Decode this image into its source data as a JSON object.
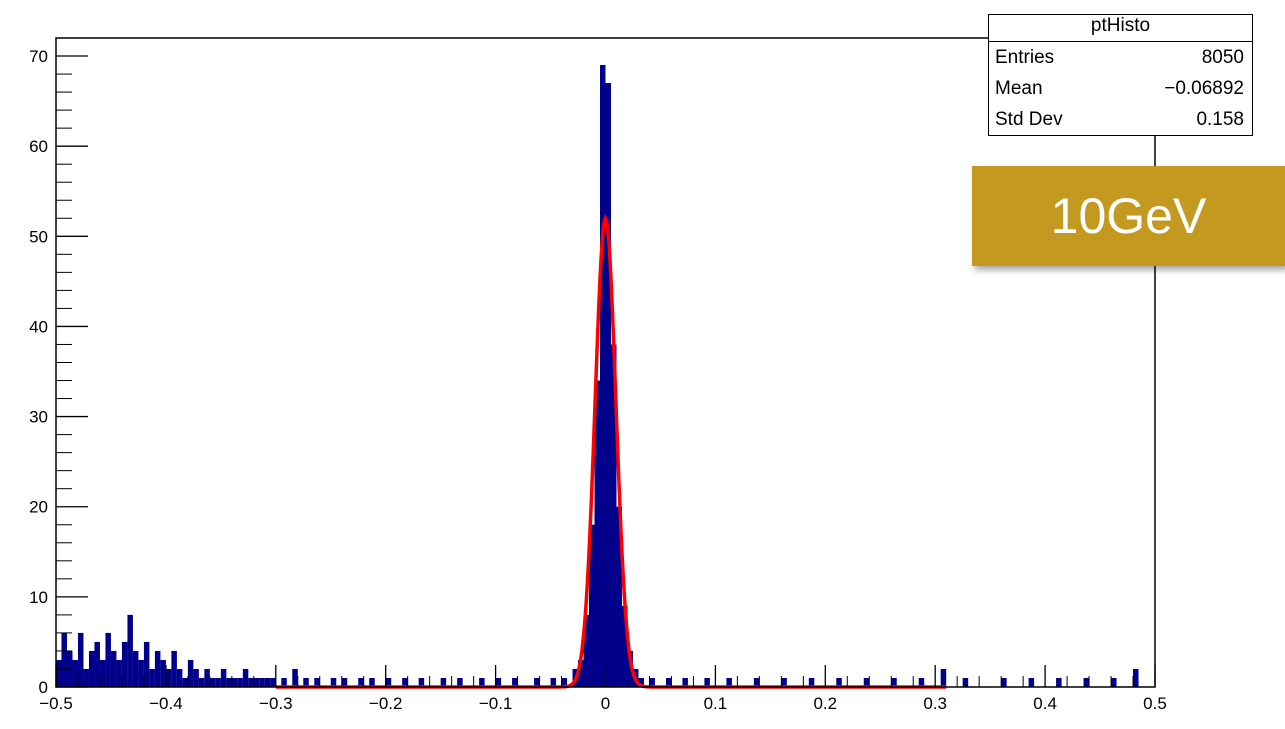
{
  "stats": {
    "title": "ptHisto",
    "rows": [
      {
        "label": "Entries",
        "value": "8050"
      },
      {
        "label": "Mean",
        "value": "−0.06892"
      },
      {
        "label": "Std Dev",
        "value": "0.158"
      }
    ]
  },
  "badge": {
    "text": "10GeV",
    "color": "#c4991f"
  },
  "chart_data": {
    "type": "bar",
    "title": "",
    "xlabel": "",
    "ylabel": "",
    "xlim": [
      -0.5,
      0.5
    ],
    "ylim": [
      0,
      72
    ],
    "x_ticks": [
      "−0.5",
      "−0.4",
      "−0.3",
      "−0.2",
      "−0.1",
      "0",
      "0.1",
      "0.2",
      "0.3",
      "0.4",
      "0.5"
    ],
    "y_ticks": [
      "0",
      "10",
      "20",
      "30",
      "40",
      "50",
      "60",
      "70"
    ],
    "histogram_color": "#00008b",
    "fit_color": "#ff0000",
    "bins": [
      {
        "x": -0.4975,
        "y": 3
      },
      {
        "x": -0.4925,
        "y": 6
      },
      {
        "x": -0.4875,
        "y": 4
      },
      {
        "x": -0.4825,
        "y": 3
      },
      {
        "x": -0.4775,
        "y": 6
      },
      {
        "x": -0.4725,
        "y": 2
      },
      {
        "x": -0.4675,
        "y": 4
      },
      {
        "x": -0.4625,
        "y": 5
      },
      {
        "x": -0.4575,
        "y": 3
      },
      {
        "x": -0.4525,
        "y": 6
      },
      {
        "x": -0.4475,
        "y": 4
      },
      {
        "x": -0.4425,
        "y": 3
      },
      {
        "x": -0.4375,
        "y": 5
      },
      {
        "x": -0.4325,
        "y": 8
      },
      {
        "x": -0.4275,
        "y": 4
      },
      {
        "x": -0.4225,
        "y": 3
      },
      {
        "x": -0.4175,
        "y": 5
      },
      {
        "x": -0.4125,
        "y": 2
      },
      {
        "x": -0.4075,
        "y": 4
      },
      {
        "x": -0.4025,
        "y": 3
      },
      {
        "x": -0.3975,
        "y": 2
      },
      {
        "x": -0.3925,
        "y": 4
      },
      {
        "x": -0.3875,
        "y": 2
      },
      {
        "x": -0.3825,
        "y": 1
      },
      {
        "x": -0.3775,
        "y": 3
      },
      {
        "x": -0.3725,
        "y": 2
      },
      {
        "x": -0.3675,
        "y": 1
      },
      {
        "x": -0.3625,
        "y": 2
      },
      {
        "x": -0.3575,
        "y": 1
      },
      {
        "x": -0.3525,
        "y": 1
      },
      {
        "x": -0.3475,
        "y": 2
      },
      {
        "x": -0.3425,
        "y": 1
      },
      {
        "x": -0.3375,
        "y": 1
      },
      {
        "x": -0.3325,
        "y": 1
      },
      {
        "x": -0.3275,
        "y": 2
      },
      {
        "x": -0.3225,
        "y": 1
      },
      {
        "x": -0.3175,
        "y": 1
      },
      {
        "x": -0.3125,
        "y": 1
      },
      {
        "x": -0.3075,
        "y": 1
      },
      {
        "x": -0.3025,
        "y": 1
      },
      {
        "x": -0.2925,
        "y": 1
      },
      {
        "x": -0.2825,
        "y": 2
      },
      {
        "x": -0.2725,
        "y": 1
      },
      {
        "x": -0.2625,
        "y": 1
      },
      {
        "x": -0.2475,
        "y": 1
      },
      {
        "x": -0.2375,
        "y": 1
      },
      {
        "x": -0.2225,
        "y": 1
      },
      {
        "x": -0.2125,
        "y": 1
      },
      {
        "x": -0.1975,
        "y": 1
      },
      {
        "x": -0.1825,
        "y": 1
      },
      {
        "x": -0.1675,
        "y": 1
      },
      {
        "x": -0.1475,
        "y": 1
      },
      {
        "x": -0.1325,
        "y": 1
      },
      {
        "x": -0.1125,
        "y": 1
      },
      {
        "x": -0.0975,
        "y": 1
      },
      {
        "x": -0.0825,
        "y": 1
      },
      {
        "x": -0.0625,
        "y": 1
      },
      {
        "x": -0.0475,
        "y": 1
      },
      {
        "x": -0.0375,
        "y": 1
      },
      {
        "x": -0.0275,
        "y": 2
      },
      {
        "x": -0.0225,
        "y": 3
      },
      {
        "x": -0.0175,
        "y": 8
      },
      {
        "x": -0.0125,
        "y": 18
      },
      {
        "x": -0.0075,
        "y": 34
      },
      {
        "x": -0.0025,
        "y": 69
      },
      {
        "x": 0.0025,
        "y": 67
      },
      {
        "x": 0.0075,
        "y": 38
      },
      {
        "x": 0.0125,
        "y": 20
      },
      {
        "x": 0.0175,
        "y": 9
      },
      {
        "x": 0.0225,
        "y": 4
      },
      {
        "x": 0.0275,
        "y": 2
      },
      {
        "x": 0.0325,
        "y": 1
      },
      {
        "x": 0.0425,
        "y": 1
      },
      {
        "x": 0.0575,
        "y": 1
      },
      {
        "x": 0.0725,
        "y": 1
      },
      {
        "x": 0.0925,
        "y": 1
      },
      {
        "x": 0.1125,
        "y": 1
      },
      {
        "x": 0.1375,
        "y": 1
      },
      {
        "x": 0.1625,
        "y": 1
      },
      {
        "x": 0.1875,
        "y": 1
      },
      {
        "x": 0.2125,
        "y": 1
      },
      {
        "x": 0.2375,
        "y": 1
      },
      {
        "x": 0.2625,
        "y": 1
      },
      {
        "x": 0.2875,
        "y": 1
      },
      {
        "x": 0.3075,
        "y": 2
      },
      {
        "x": 0.3275,
        "y": 1
      },
      {
        "x": 0.3625,
        "y": 1
      },
      {
        "x": 0.3875,
        "y": 1
      },
      {
        "x": 0.4125,
        "y": 1
      },
      {
        "x": 0.4375,
        "y": 1
      },
      {
        "x": 0.4625,
        "y": 1
      },
      {
        "x": 0.4825,
        "y": 2
      }
    ],
    "fit": {
      "type": "gaussian",
      "amplitude": 52,
      "mean": 0.0,
      "sigma": 0.0095,
      "range": [
        -0.3,
        0.31
      ]
    }
  }
}
